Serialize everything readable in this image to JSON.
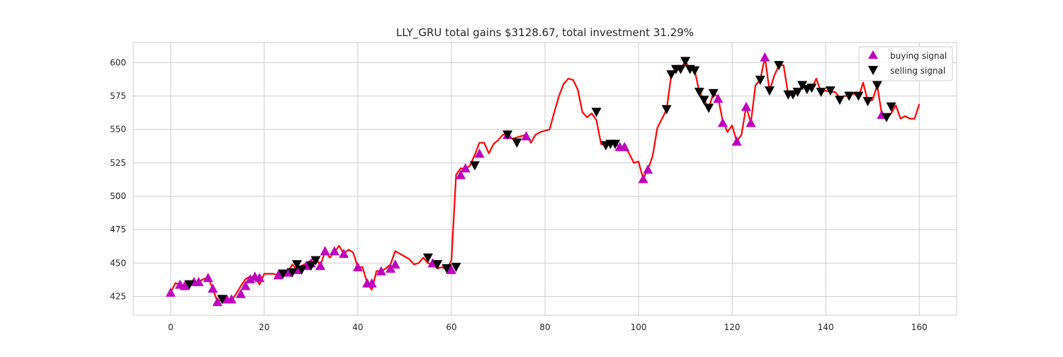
{
  "chart_data": {
    "type": "line",
    "title": "LLY_GRU total gains $3128.67, total investment 31.29%",
    "xlabel": "",
    "ylabel": "",
    "xlim": [
      -8,
      168
    ],
    "ylim": [
      411,
      615
    ],
    "xticks": [
      0,
      20,
      40,
      60,
      80,
      100,
      120,
      140,
      160
    ],
    "yticks": [
      425,
      450,
      475,
      500,
      525,
      550,
      575,
      600
    ],
    "grid": true,
    "legend_position": "top-right",
    "colors": {
      "line": "#ff0000",
      "buy": "#bf00bf",
      "sell": "#000000",
      "grid": "#cccccc",
      "spine": "#cccccc"
    },
    "series": [
      {
        "type": "line",
        "x": [
          0,
          1,
          2,
          3,
          4,
          5,
          6,
          7,
          8,
          9,
          10,
          11,
          12,
          13,
          14,
          15,
          16,
          17,
          18,
          19,
          20,
          21,
          22,
          23,
          24,
          25,
          26,
          27,
          28,
          29,
          30,
          31,
          32,
          33,
          34,
          35,
          36,
          37,
          38,
          39,
          40,
          41,
          42,
          43,
          44,
          45,
          46,
          47,
          48,
          49,
          50,
          51,
          52,
          53,
          54,
          55,
          56,
          57,
          58,
          59,
          60,
          61,
          62,
          63,
          64,
          65,
          66,
          67,
          68,
          69,
          70,
          71,
          72,
          73,
          74,
          75,
          76,
          77,
          78,
          79,
          80,
          81,
          82,
          83,
          84,
          85,
          86,
          87,
          88,
          89,
          90,
          91,
          92,
          93,
          94,
          95,
          96,
          97,
          98,
          99,
          100,
          101,
          102,
          103,
          104,
          105,
          106,
          107,
          108,
          109,
          110,
          111,
          112,
          113,
          114,
          115,
          116,
          117,
          118,
          119,
          120,
          121,
          122,
          123,
          124,
          125,
          126,
          127,
          128,
          129,
          130,
          131,
          132,
          133,
          134,
          135,
          136,
          137,
          138,
          139,
          140,
          141,
          142,
          143,
          144,
          145,
          146,
          147,
          148,
          149,
          150,
          151,
          152,
          153,
          154,
          155,
          156,
          157,
          158,
          159,
          160
        ],
        "y": [
          428,
          435,
          434,
          433,
          434,
          436,
          436,
          438,
          439,
          431,
          421,
          423,
          423,
          422,
          427,
          433,
          438,
          440,
          439,
          434,
          442,
          442,
          442,
          441,
          442,
          443,
          449,
          445,
          448,
          450,
          452,
          454,
          448,
          459,
          454,
          458,
          463,
          457,
          460,
          458,
          447,
          447,
          435,
          430,
          444,
          444,
          446,
          449,
          459,
          457,
          455,
          453,
          449,
          450,
          454,
          450,
          449,
          446,
          447,
          445,
          452,
          516,
          521,
          520,
          523,
          531,
          540,
          540,
          532,
          539,
          542,
          546,
          546,
          543,
          544,
          545,
          546,
          540,
          546,
          548,
          549,
          550,
          563,
          575,
          584,
          588,
          587,
          580,
          563,
          559,
          562,
          557,
          539,
          538,
          539,
          539,
          537,
          537,
          532,
          525,
          526,
          513,
          520,
          530,
          551,
          558,
          565,
          591,
          595,
          595,
          601,
          595,
          594,
          578,
          572,
          566,
          577,
          574,
          556,
          548,
          553,
          541,
          546,
          567,
          555,
          583,
          587,
          604,
          579,
          590,
          598,
          598,
          576,
          576,
          578,
          583,
          580,
          581,
          588,
          578,
          579,
          578,
          578,
          574,
          575,
          575,
          577,
          574,
          585,
          571,
          572,
          583,
          561,
          558,
          562,
          568,
          558,
          560,
          558,
          558,
          569
        ]
      },
      {
        "type": "scatter",
        "marker": "triangle-up",
        "x": [
          0,
          2,
          3,
          5,
          6,
          8,
          9,
          10,
          12,
          13,
          15,
          16,
          17,
          18,
          19,
          23,
          25,
          27,
          29,
          30,
          32,
          33,
          35,
          37,
          40,
          42,
          43,
          45,
          47,
          48,
          56,
          60,
          62,
          63,
          66,
          72,
          76,
          96,
          97,
          101,
          102,
          117,
          118,
          121,
          123,
          124,
          127,
          152
        ],
        "y": [
          428,
          434,
          433,
          436,
          436,
          439,
          431,
          421,
          423,
          423,
          427,
          433,
          438,
          440,
          439,
          441,
          443,
          445,
          448,
          450,
          448,
          459,
          459,
          457,
          447,
          435,
          435,
          444,
          446,
          449,
          450,
          445,
          516,
          521,
          532,
          546,
          545,
          537,
          537,
          513,
          520,
          573,
          555,
          541,
          567,
          555,
          604,
          561
        ]
      },
      {
        "type": "scatter",
        "marker": "triangle-down",
        "x": [
          4,
          11,
          24,
          26,
          27,
          28,
          30,
          31,
          55,
          57,
          59,
          61,
          65,
          72,
          74,
          91,
          93,
          94,
          95,
          106,
          107,
          108,
          109,
          110,
          111,
          112,
          113,
          114,
          115,
          116,
          126,
          128,
          130,
          132,
          133,
          134,
          135,
          136,
          137,
          139,
          141,
          143,
          145,
          147,
          149,
          151,
          153,
          154
        ],
        "y": [
          434,
          423,
          442,
          443,
          449,
          445,
          448,
          452,
          454,
          449,
          446,
          447,
          523,
          546,
          540,
          563,
          538,
          539,
          539,
          565,
          591,
          595,
          595,
          601,
          595,
          594,
          578,
          572,
          566,
          577,
          587,
          579,
          598,
          576,
          576,
          578,
          583,
          580,
          581,
          578,
          579,
          572,
          575,
          575,
          571,
          583,
          559,
          567
        ]
      }
    ],
    "legend": [
      {
        "label": "buying signal",
        "marker": "triangle-up"
      },
      {
        "label": "selling signal",
        "marker": "triangle-down"
      }
    ]
  }
}
